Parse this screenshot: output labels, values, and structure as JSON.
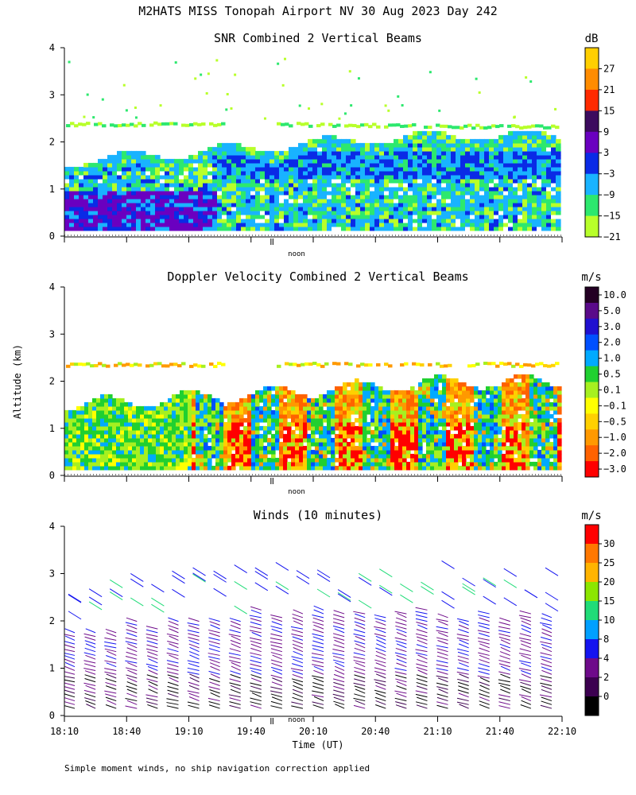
{
  "page_title": "M2HATS MISS Tonopah Airport NV  30 Aug 2023 Day 242",
  "footnote": "Simple moment winds, no ship navigation correction applied",
  "chart_data": [
    {
      "type": "heatmap",
      "title": "SNR Combined 2 Vertical Beams",
      "ylabel": "Altitude (km)",
      "yticks": [
        0,
        1,
        2,
        3,
        4
      ],
      "ylim": [
        0,
        4
      ],
      "noon_label": "noon",
      "colorbar": {
        "unit": "dB",
        "labels": [
          "27",
          "21",
          "15",
          "9",
          "3",
          "−3",
          "−9",
          "−15",
          "−21"
        ],
        "colors": [
          "#ffcf00",
          "#ff8c00",
          "#ff2a00",
          "#3c0b5e",
          "#6a00c0",
          "#0a2ae6",
          "#19b3ff",
          "#2de86e",
          "#b8ff2a"
        ]
      },
      "layers": [
        {
          "name": "boundary-layer",
          "top_km_start": 1.7,
          "top_km_end": 2.2
        },
        {
          "name": "elevated-layer",
          "altitude_km": 2.35
        }
      ]
    },
    {
      "type": "heatmap",
      "title": "Doppler Velocity Combined 2 Vertical Beams",
      "ylabel": "Altitude (km)",
      "yticks": [
        0,
        1,
        2,
        3,
        4
      ],
      "ylim": [
        0,
        4
      ],
      "noon_label": "noon",
      "colorbar": {
        "unit": "m/s",
        "labels": [
          "10.0",
          "5.0",
          "3.0",
          "2.0",
          "1.0",
          "0.5",
          "0.1",
          "−0.1",
          "−0.5",
          "−1.0",
          "−2.0",
          "−3.0"
        ],
        "colors": [
          "#240024",
          "#5a0a8a",
          "#2010d0",
          "#0050ff",
          "#00aaff",
          "#20d030",
          "#a6f020",
          "#ffff00",
          "#ffd000",
          "#ff9900",
          "#ff6200",
          "#ff0000"
        ]
      }
    },
    {
      "type": "scatter",
      "title": "Winds (10 minutes)",
      "ylabel": "Altitude (km)",
      "yticks": [
        0,
        1,
        2,
        3,
        4
      ],
      "ylim": [
        0,
        4
      ],
      "xlabel": "Time (UT)",
      "xticks": [
        "18:10",
        "18:40",
        "19:10",
        "19:40",
        "20:10",
        "20:40",
        "21:10",
        "21:40",
        "22:10"
      ],
      "noon_label": "noon",
      "columns_utc": [
        "18:15",
        "18:25",
        "18:35",
        "18:45",
        "18:55",
        "19:05",
        "19:15",
        "19:25",
        "19:35",
        "19:45",
        "19:55",
        "20:05",
        "20:15",
        "20:25",
        "20:35",
        "20:45",
        "20:55",
        "21:05",
        "21:15",
        "21:25",
        "21:35",
        "21:45",
        "21:55",
        "22:05"
      ],
      "colorbar": {
        "unit": "m/s",
        "labels": [
          "30",
          "25",
          "20",
          "15",
          "10",
          "8",
          "4",
          "2",
          "0"
        ],
        "colors": [
          "#ff0000",
          "#ff7800",
          "#ffb400",
          "#8ce600",
          "#20dc78",
          "#00a0ff",
          "#1414f0",
          "#6e0a8a",
          "#3c0050",
          "#000000"
        ]
      }
    }
  ]
}
